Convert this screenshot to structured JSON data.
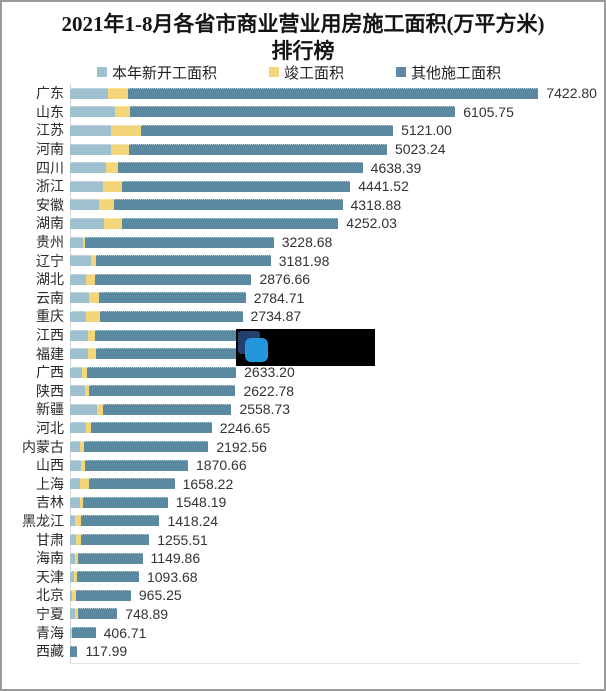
{
  "title": {
    "line1": "2021年1-8月各省市商业营业用房施工面积(万平方米)",
    "line2": "排行榜"
  },
  "legend": [
    {
      "label": "本年新开工面积",
      "color": "#9fc0ce"
    },
    {
      "label": "竣工面积",
      "color": "#f4d67a"
    },
    {
      "label": "其他施工面积",
      "color": "#5b89a2"
    }
  ],
  "colors": {
    "new_start": "#9fc0ce",
    "completed": "#f4d67a",
    "other": "#5b89a2",
    "value_text": "#333333",
    "redact_box": "#000000",
    "redact_logo_navy": "#24406e",
    "redact_logo_blue": "#2496dc"
  },
  "chart_data": {
    "type": "bar",
    "orientation": "horizontal",
    "stacked": true,
    "unit": "万平方米",
    "title": "2021年1-8月各省市商业营业用房施工面积(万平方米)排行榜",
    "series_names": [
      "本年新开工面积",
      "竣工面积",
      "其他施工面积"
    ],
    "xlim": [
      0,
      7800
    ],
    "legend_position": "top",
    "note": "江西和福建的数值标签被黑色遮挡块覆盖，数值不可见，总量为按条长估计",
    "rows": [
      {
        "name": "广东",
        "label": "7422.80",
        "total": 7422.8,
        "segments": [
          602,
          317,
          6503.8
        ]
      },
      {
        "name": "山东",
        "label": "6105.75",
        "total": 6105.75,
        "segments": [
          713,
          233,
          5159.75
        ]
      },
      {
        "name": "江苏",
        "label": "5121.00",
        "total": 5121.0,
        "segments": [
          654,
          470,
          3997.0
        ]
      },
      {
        "name": "河南",
        "label": "5023.24",
        "total": 5023.24,
        "segments": [
          649,
          280,
          4094.24
        ]
      },
      {
        "name": "四川",
        "label": "4638.39",
        "total": 4638.39,
        "segments": [
          575,
          179,
          3884.39
        ]
      },
      {
        "name": "浙江",
        "label": "4441.52",
        "total": 4441.52,
        "segments": [
          518,
          306,
          3617.52
        ]
      },
      {
        "name": "安徽",
        "label": "4318.88",
        "total": 4318.88,
        "segments": [
          465,
          227,
          3626.88
        ]
      },
      {
        "name": "湖南",
        "label": "4252.03",
        "total": 4252.03,
        "segments": [
          533,
          296,
          3423.03
        ]
      },
      {
        "name": "贵州",
        "label": "3228.68",
        "total": 3228.68,
        "segments": [
          206,
          37,
          2985.68
        ]
      },
      {
        "name": "辽宁",
        "label": "3181.98",
        "total": 3181.98,
        "segments": [
          327,
          90,
          2764.98
        ]
      },
      {
        "name": "湖北",
        "label": "2876.66",
        "total": 2876.66,
        "segments": [
          253,
          148,
          2475.66
        ]
      },
      {
        "name": "云南",
        "label": "2784.71",
        "total": 2784.71,
        "segments": [
          301,
          158,
          2325.71
        ]
      },
      {
        "name": "重庆",
        "label": "2734.87",
        "total": 2734.87,
        "segments": [
          253,
          227,
          2254.87
        ]
      },
      {
        "name": "江西",
        "label": "",
        "total": 2700.0,
        "segments": [
          280,
          121,
          2299.0
        ],
        "label_hidden": true
      },
      {
        "name": "福建",
        "label": "",
        "total": 2690.0,
        "segments": [
          285,
          132,
          2273.0
        ],
        "label_hidden": true
      },
      {
        "name": "广西",
        "label": "2633.20",
        "total": 2633.2,
        "segments": [
          190,
          84,
          2359.2
        ]
      },
      {
        "name": "陕西",
        "label": "2622.78",
        "total": 2622.78,
        "segments": [
          243,
          63,
          2316.78
        ]
      },
      {
        "name": "新疆",
        "label": "2558.73",
        "total": 2558.73,
        "segments": [
          422,
          95,
          2041.73
        ]
      },
      {
        "name": "河北",
        "label": "2246.65",
        "total": 2246.65,
        "segments": [
          258,
          79,
          1909.65
        ]
      },
      {
        "name": "内蒙古",
        "label": "2192.56",
        "total": 2192.56,
        "segments": [
          163,
          63,
          1966.56
        ]
      },
      {
        "name": "山西",
        "label": "1870.66",
        "total": 1870.66,
        "segments": [
          179,
          63,
          1628.66
        ]
      },
      {
        "name": "上海",
        "label": "1658.22",
        "total": 1658.22,
        "segments": [
          163,
          132,
          1363.22
        ]
      },
      {
        "name": "吉林",
        "label": "1548.19",
        "total": 1548.19,
        "segments": [
          158,
          47,
          1343.19
        ]
      },
      {
        "name": "黑龙江",
        "label": "1418.24",
        "total": 1418.24,
        "segments": [
          84,
          90,
          1244.24
        ]
      },
      {
        "name": "甘肃",
        "label": "1255.51",
        "total": 1255.51,
        "segments": [
          100,
          74,
          1081.51
        ]
      },
      {
        "name": "海南",
        "label": "1149.86",
        "total": 1149.86,
        "segments": [
          84,
          42,
          1023.86
        ]
      },
      {
        "name": "天津",
        "label": "1093.68",
        "total": 1093.68,
        "segments": [
          63,
          42,
          988.68
        ]
      },
      {
        "name": "北京",
        "label": "965.25",
        "total": 965.25,
        "segments": [
          37,
          53,
          875.25
        ]
      },
      {
        "name": "宁夏",
        "label": "748.89",
        "total": 748.89,
        "segments": [
          74,
          53,
          621.89
        ]
      },
      {
        "name": "青海",
        "label": "406.71",
        "total": 406.71,
        "segments": [
          20,
          10,
          376.71
        ]
      },
      {
        "name": "西藏",
        "label": "117.99",
        "total": 117.99,
        "segments": [
          0,
          0,
          117.99
        ]
      }
    ]
  }
}
